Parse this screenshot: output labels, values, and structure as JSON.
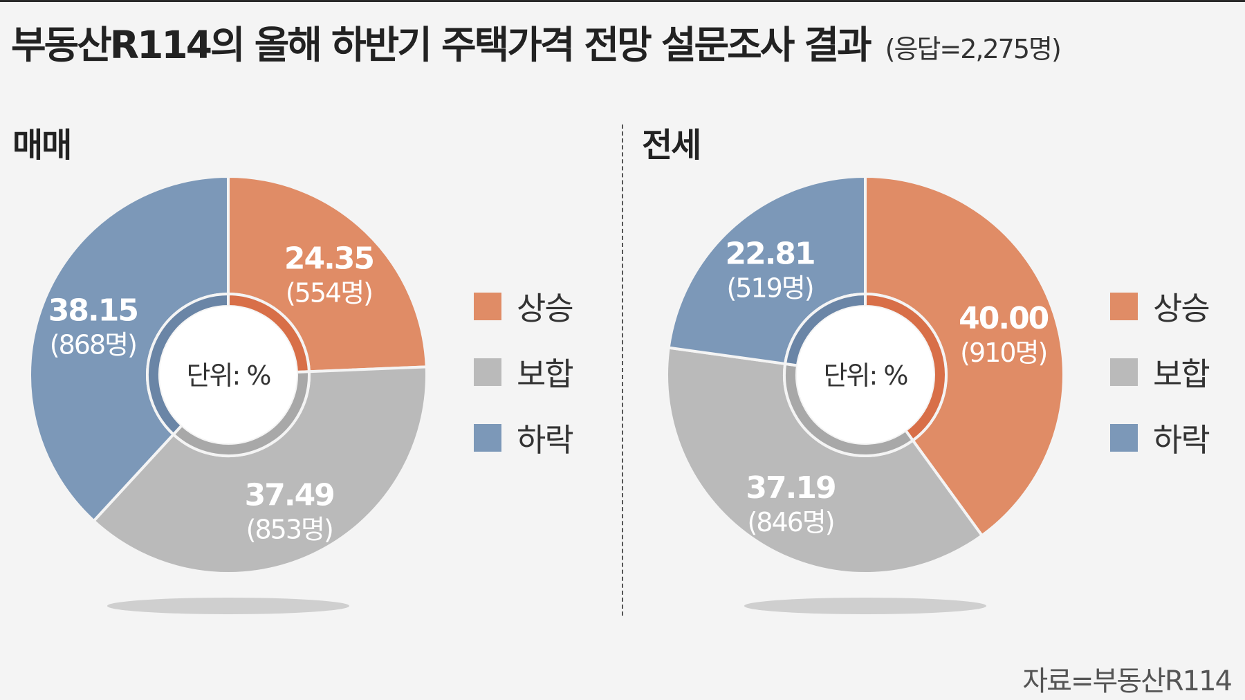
{
  "title": {
    "main": "부동산R114의 올해 하반기 주택가격 전망 설문조사 결과",
    "sub": "(응답=2,275명)"
  },
  "source": "자료=부동산R114",
  "colors": {
    "rise": "#e08c66",
    "rise_inner": "#d86f48",
    "flat": "#bababa",
    "flat_inner": "#a8a8a8",
    "fall": "#7c98b8",
    "fall_inner": "#6a85a6",
    "text_light": "#ffffff"
  },
  "chart_data": [
    {
      "type": "pie",
      "title": "매매",
      "center_label": "단위: %",
      "categories": [
        "상승",
        "보합",
        "하락"
      ],
      "values": [
        24.35,
        37.49,
        38.15
      ],
      "value_labels": [
        "24.35",
        "37.49",
        "38.15"
      ],
      "counts": [
        "(554명)",
        "(853명)",
        "(868명)"
      ],
      "legend": [
        "상승",
        "보합",
        "하락"
      ],
      "legend_placement": "right"
    },
    {
      "type": "pie",
      "title": "전세",
      "center_label": "단위: %",
      "categories": [
        "상승",
        "보합",
        "하락"
      ],
      "values": [
        40.0,
        37.19,
        22.81
      ],
      "value_labels": [
        "40.00",
        "37.19",
        "22.81"
      ],
      "counts": [
        "(910명)",
        "(846명)",
        "(519명)"
      ],
      "legend": [
        "상승",
        "보합",
        "하락"
      ],
      "legend_placement": "right"
    }
  ]
}
